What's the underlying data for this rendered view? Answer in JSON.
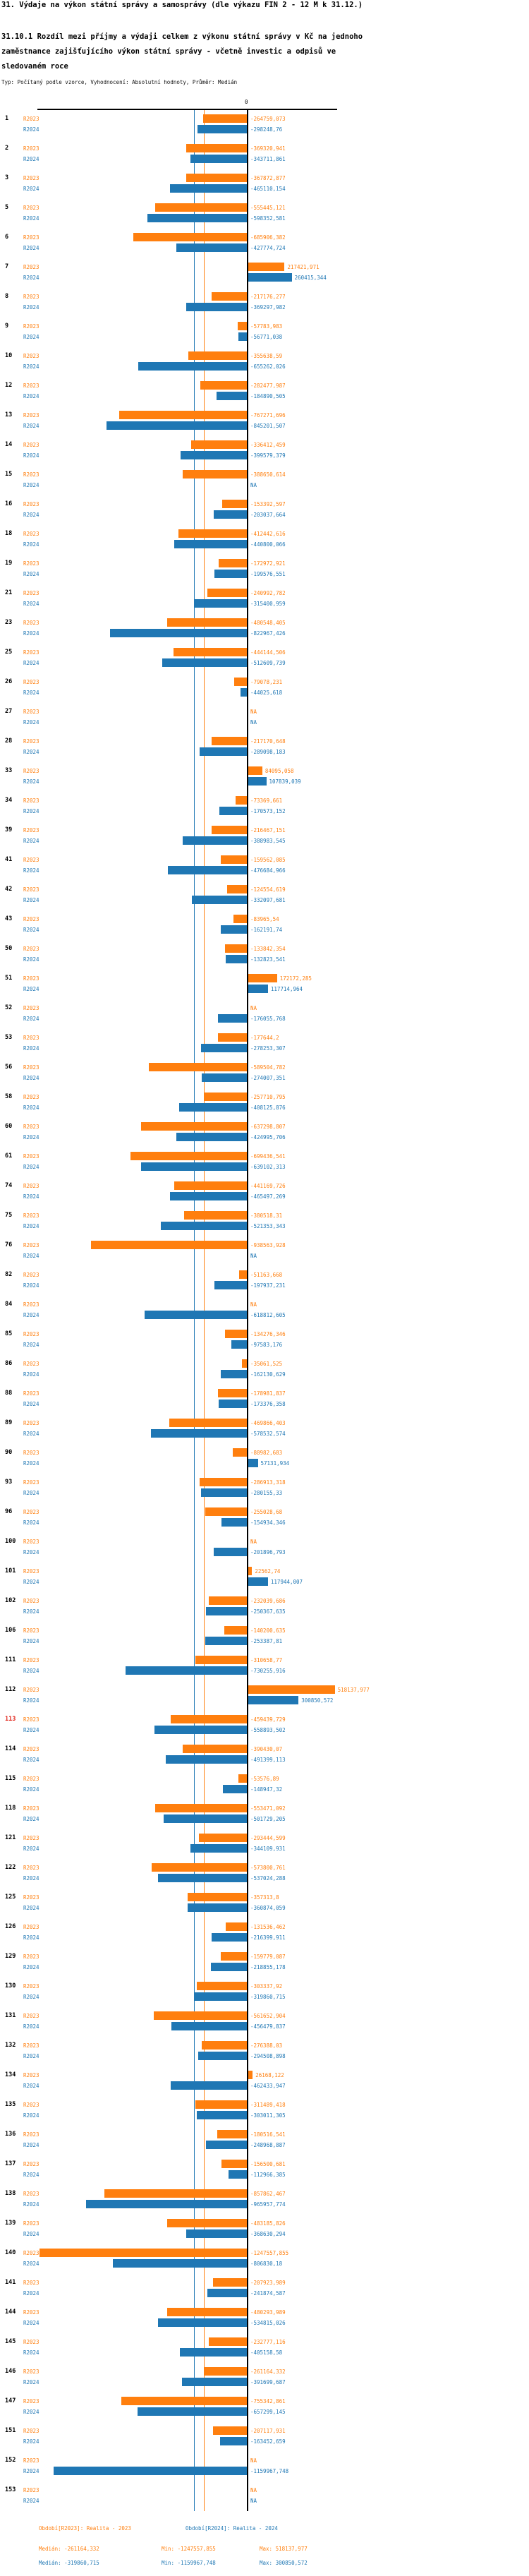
{
  "header": {
    "title": "31. Výdaje na výkon státní správy a samosprávy (dle výkazu FIN 2 - 12 M k 31.12.)",
    "subtitle": "31.10.1 Rozdíl mezi příjmy a výdaji celkem z výkonu státní správy v Kč na jednoho zaměstnance zajišťujícího výkon státní správy - včetně investic a odpisů ve sledovaném roce",
    "meta": "Typ: Počítaný podle vzorce, Vyhodnocení: Absolutní hodnoty, Průměr: Medián"
  },
  "chart_data": {
    "type": "bar",
    "orientation": "horizontal",
    "value_unit": "Kč",
    "zero_tick_label": "0",
    "na_label": "NA",
    "decimal_separator": ",",
    "grid": false,
    "highlight_category": "113",
    "highlight_color": "#e1251b",
    "axis_range": [
      -1260000,
      540000
    ],
    "categories": [
      "1",
      "2",
      "3",
      "5",
      "6",
      "7",
      "8",
      "9",
      "10",
      "12",
      "13",
      "14",
      "15",
      "16",
      "18",
      "19",
      "21",
      "23",
      "25",
      "26",
      "27",
      "28",
      "33",
      "34",
      "39",
      "41",
      "42",
      "43",
      "50",
      "51",
      "52",
      "53",
      "56",
      "58",
      "60",
      "61",
      "74",
      "75",
      "76",
      "82",
      "84",
      "85",
      "86",
      "88",
      "89",
      "90",
      "93",
      "96",
      "100",
      "101",
      "102",
      "106",
      "111",
      "112",
      "113",
      "114",
      "115",
      "118",
      "121",
      "122",
      "125",
      "126",
      "129",
      "130",
      "131",
      "132",
      "134",
      "135",
      "136",
      "137",
      "138",
      "139",
      "140",
      "141",
      "144",
      "145",
      "146",
      "147",
      "151",
      "152",
      "153"
    ],
    "series": [
      {
        "name": "R2023",
        "color": "#ff7f0e",
        "period": "Realita - 2023",
        "median": -261164.332,
        "min": -1247557.855,
        "max": 518137.977,
        "values": [
          -264759.073,
          -369320.941,
          -367872.877,
          -555445.121,
          -685906.382,
          217421.971,
          -217176.277,
          -57783.983,
          -355638.59,
          -282477.987,
          -767271.696,
          -336412.459,
          -388650.614,
          -153392.597,
          -412442.616,
          -172972.921,
          -240992.782,
          -480548.405,
          -444144.506,
          -79078.231,
          null,
          -217170.648,
          84095.058,
          -73369.661,
          -216467.151,
          -159562.085,
          -124554.619,
          -83965.54,
          -133842.354,
          172172.285,
          null,
          -177644.2,
          -589504.782,
          -257710.795,
          -637298.807,
          -699436.541,
          -441169.726,
          -380518.31,
          -938563.928,
          -51163.668,
          null,
          -134276.346,
          -35061.525,
          -178981.837,
          -469866.403,
          -88982.683,
          -286913.318,
          -255028.68,
          null,
          22562.74,
          -232039.686,
          -140200.635,
          -310658.77,
          518137.977,
          -459439.729,
          -390430.07,
          -53576.89,
          -553471.092,
          -293444.599,
          -573800.761,
          -357313.8,
          -131536.462,
          -159779.087,
          -303337.92,
          -561652.904,
          -276388.03,
          26168.122,
          -311489.418,
          -180516.541,
          -156500.681,
          -857862.467,
          -483185.826,
          -1247557.855,
          -207923.989,
          -480293.989,
          -232777.116,
          -261164.332,
          -755342.861,
          -207117.931,
          null,
          null
        ]
      },
      {
        "name": "R2024",
        "color": "#1f77b4",
        "period": "Realita - 2024",
        "median": -319860.715,
        "min": -1159967.748,
        "max": 300850.572,
        "values": [
          -298248.76,
          -343711.861,
          -465110.154,
          -598352.581,
          -427774.724,
          260415.344,
          -369297.982,
          -56771.038,
          -655262.026,
          -184890.505,
          -845201.507,
          -399579.379,
          null,
          -203037.664,
          -440800.066,
          -199576.551,
          -315400.959,
          -822967.426,
          -512609.739,
          -44025.618,
          null,
          -289098.183,
          107839.039,
          -170573.152,
          -388983.545,
          -476684.966,
          -332097.681,
          -162191.74,
          -132823.541,
          117714.964,
          -176055.768,
          -278253.307,
          -274007.351,
          -408125.876,
          -424995.706,
          -639102.313,
          -465497.269,
          -521353.343,
          null,
          -197937.231,
          -618812.605,
          -97583.176,
          -162130.629,
          -173376.358,
          -578532.574,
          57131.934,
          -280155.33,
          -154934.346,
          -201896.793,
          117944.007,
          -250367.635,
          -253387.81,
          -730255.916,
          300850.572,
          -558893.502,
          -491399.113,
          -148947.32,
          -501729.205,
          -344109.931,
          -537024.288,
          -360874.059,
          -216399.911,
          -218855.178,
          -319860.715,
          -456479.837,
          -294508.898,
          -462433.947,
          -303011.305,
          -248968.887,
          -112966.385,
          -965957.774,
          -368630.294,
          -806830.18,
          -241874.587,
          -534815.026,
          -405158.58,
          -391699.687,
          -657299.145,
          -163452.659,
          -1159967.748,
          null
        ]
      }
    ]
  },
  "footer": {
    "period_2023": "Období[R2023]: Realita - 2023",
    "period_2024": "Období[R2024]: Realita - 2024",
    "median_2023": "Medián: -261164,332",
    "min_2023": "Min: -1247557,855",
    "max_2023": "Max: 518137,977",
    "median_2024": "Medián: -319860,715",
    "min_2024": "Min: -1159967,748",
    "max_2024": "Max: 300850,572"
  }
}
